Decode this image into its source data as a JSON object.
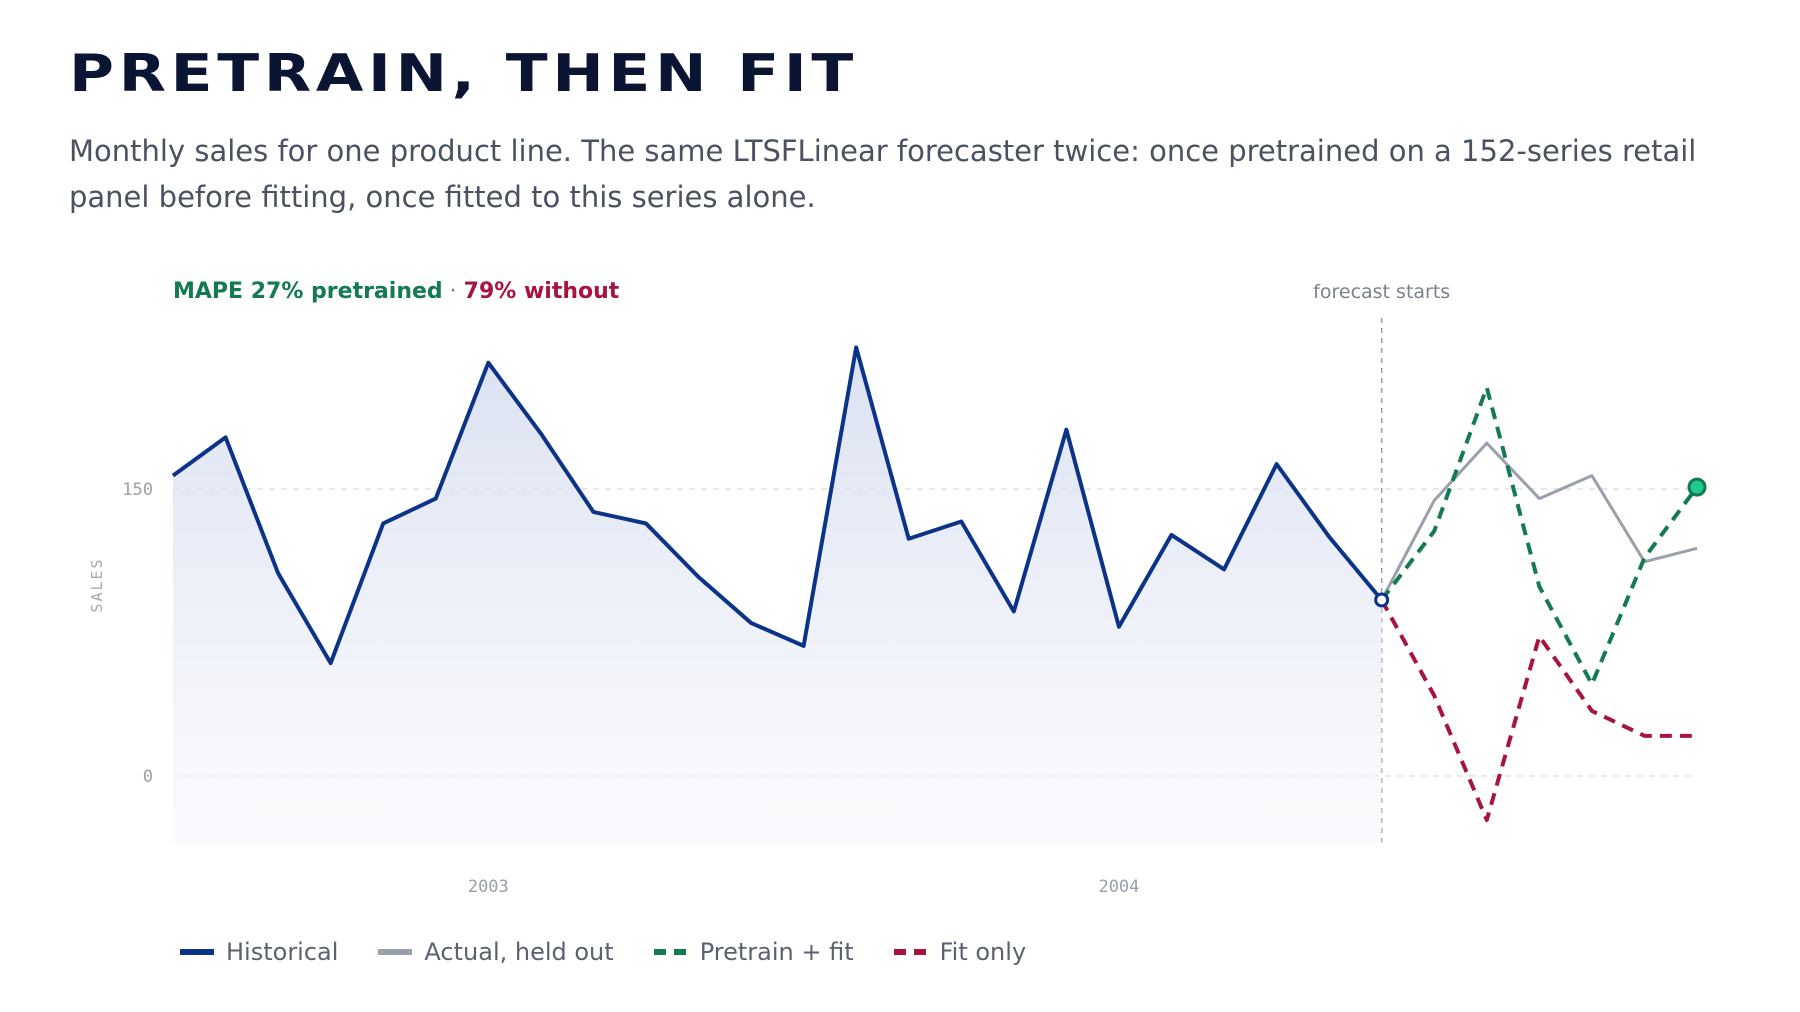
{
  "header": {
    "title": "PRETRAIN, THEN FIT",
    "subtitle": "Monthly sales for one product line. The same LTSFLinear forecaster twice: once pretrained on a 152-series retail panel before fitting, once fitted to this series alone."
  },
  "annotation": {
    "mape_pretrained": "MAPE 27% pretrained",
    "separator": " · ",
    "mape_without": "79% without",
    "forecast_start": "forecast starts"
  },
  "legend": [
    {
      "label": "Historical",
      "style": "solid-blue"
    },
    {
      "label": "Actual, held out",
      "style": "solid-grey"
    },
    {
      "label": "Pretrain + fit",
      "style": "dash-green"
    },
    {
      "label": "Fit only",
      "style": "dash-red"
    }
  ],
  "colors": {
    "historical": "#0b3388",
    "actual": "#9aa0ab",
    "pretrain": "#137a52",
    "fitonly": "#a8143f",
    "endpoint": "#22c98a",
    "mape_green": "#137a52",
    "mape_red": "#a8143f"
  },
  "chart_data": {
    "type": "line",
    "ylabel": "SALES",
    "yticks": [
      0,
      150
    ],
    "ylim": [
      -35,
      225
    ],
    "xlim": [
      0,
      29
    ],
    "xticks": [
      {
        "index": 6,
        "label": "2003"
      },
      {
        "index": 18,
        "label": "2004"
      }
    ],
    "forecast_start_index": 23,
    "historical": [
      157,
      177,
      106,
      59,
      132,
      145,
      216,
      179,
      138,
      132,
      104,
      80,
      68,
      224,
      124,
      133,
      86,
      181,
      78,
      126,
      108,
      163,
      125,
      92
    ],
    "forecast_x": [
      23,
      24,
      25,
      26,
      27,
      28,
      29
    ],
    "series": [
      {
        "name": "Actual, held out",
        "values": [
          92,
          144,
          174,
          145,
          157,
          112,
          119
        ]
      },
      {
        "name": "Pretrain + fit",
        "values": [
          92,
          128,
          203,
          99,
          48,
          114,
          151
        ]
      },
      {
        "name": "Fit only",
        "values": [
          92,
          42,
          -23,
          73,
          34,
          21,
          21
        ]
      }
    ]
  }
}
